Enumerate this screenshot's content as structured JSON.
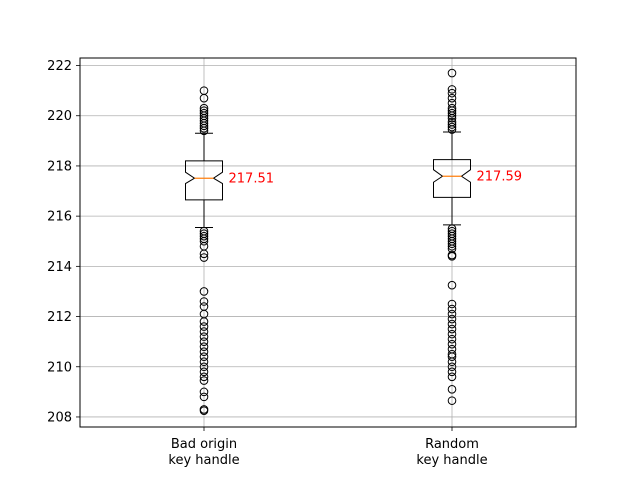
{
  "chart_data": {
    "type": "box",
    "title": "",
    "xlabel": "",
    "ylabel": "",
    "ylim": [
      207.6,
      222.3
    ],
    "yticks": [
      208,
      210,
      212,
      214,
      216,
      218,
      220,
      222
    ],
    "grid": true,
    "notched": true,
    "categories": [
      {
        "line1": "Bad origin",
        "line2": "key handle"
      },
      {
        "line1": "Random",
        "line2": "key handle"
      }
    ],
    "series": [
      {
        "median": 217.51,
        "median_label": "217.51",
        "q1": 216.65,
        "q3": 218.2,
        "notch_low": 217.3,
        "notch_high": 217.75,
        "whisker_low": 215.55,
        "whisker_high": 219.3,
        "outliers": [
          219.4,
          219.5,
          219.6,
          219.7,
          219.8,
          219.9,
          220.0,
          220.1,
          220.2,
          220.3,
          220.7,
          221.0,
          215.4,
          215.3,
          215.2,
          215.1,
          215.0,
          214.8,
          214.5,
          214.35,
          213.0,
          212.6,
          212.4,
          212.1,
          211.8,
          211.6,
          211.4,
          211.2,
          211.0,
          210.8,
          210.6,
          210.4,
          210.2,
          210.0,
          209.8,
          209.6,
          209.45,
          209.0,
          208.8,
          208.3,
          208.25
        ]
      },
      {
        "median": 217.59,
        "median_label": "217.59",
        "q1": 216.75,
        "q3": 218.25,
        "notch_low": 217.35,
        "notch_high": 217.85,
        "whisker_low": 215.65,
        "whisker_high": 219.35,
        "outliers": [
          219.45,
          219.55,
          219.65,
          219.75,
          219.9,
          220.0,
          220.1,
          220.2,
          220.3,
          220.5,
          220.7,
          220.9,
          221.05,
          221.7,
          215.5,
          215.4,
          215.3,
          215.2,
          215.1,
          215.0,
          214.9,
          214.8,
          214.7,
          214.45,
          214.4,
          213.25,
          212.5,
          212.3,
          212.1,
          211.9,
          211.7,
          211.5,
          211.3,
          211.1,
          210.9,
          210.7,
          210.5,
          210.4,
          210.2,
          210.0,
          209.8,
          209.6,
          209.1,
          208.65
        ]
      }
    ],
    "colors": {
      "median": "#ff7f0e",
      "median_label": "#ff0000",
      "grid": "#b0b0b0",
      "box": "#000000"
    }
  }
}
